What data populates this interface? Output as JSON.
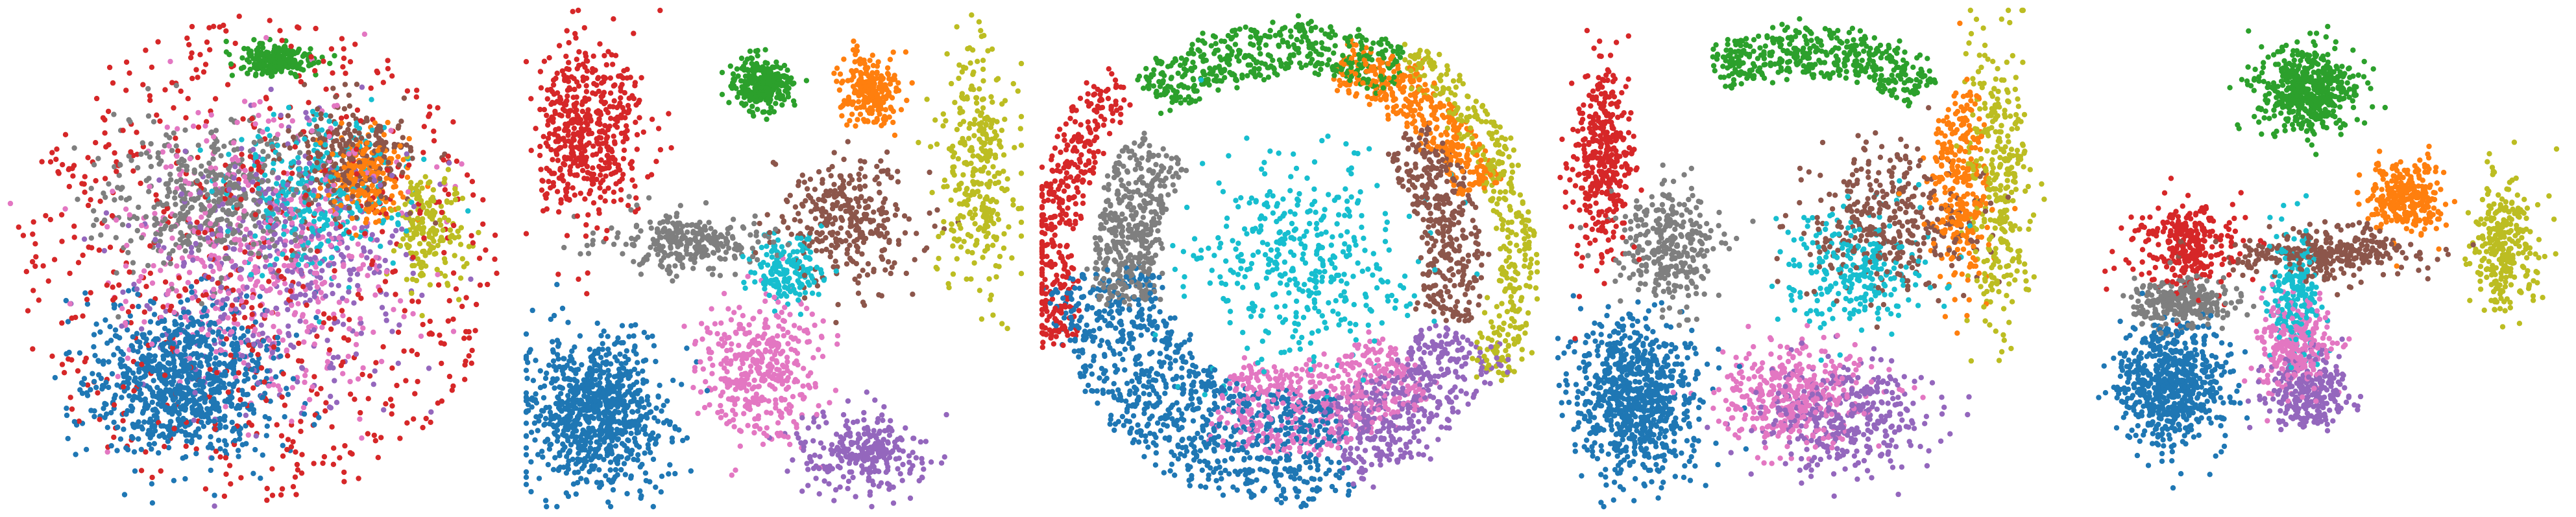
{
  "chart_data": [
    {
      "type": "scatter",
      "clusters": [
        {
          "color": "#1f77b4",
          "count": 900,
          "center": [
            -0.3,
            -0.5
          ],
          "spread": [
            0.4,
            0.3
          ],
          "shape": "blob"
        },
        {
          "color": "#ff7f0e",
          "count": 220,
          "center": [
            0.45,
            0.32
          ],
          "spread": [
            0.15,
            0.16
          ],
          "shape": "blob"
        },
        {
          "color": "#2ca02c",
          "count": 220,
          "center": [
            0.08,
            0.8
          ],
          "spread": [
            0.15,
            0.06
          ],
          "shape": "blob"
        },
        {
          "color": "#d62728",
          "count": 650,
          "center": [
            0.0,
            0.0
          ],
          "spread": [
            0.98,
            0.98
          ],
          "shape": "scatter"
        },
        {
          "color": "#9467bd",
          "count": 420,
          "center": [
            0.1,
            -0.05
          ],
          "spread": [
            0.55,
            0.55
          ],
          "shape": "blob"
        },
        {
          "color": "#8c564b",
          "count": 260,
          "center": [
            0.38,
            0.42
          ],
          "spread": [
            0.25,
            0.2
          ],
          "shape": "blob"
        },
        {
          "color": "#e377c2",
          "count": 500,
          "center": [
            0.0,
            0.0
          ],
          "spread": [
            0.6,
            0.6
          ],
          "shape": "blob"
        },
        {
          "color": "#7f7f7f",
          "count": 450,
          "center": [
            -0.2,
            0.25
          ],
          "spread": [
            0.45,
            0.3
          ],
          "shape": "blob"
        },
        {
          "color": "#bcbd22",
          "count": 180,
          "center": [
            0.7,
            0.1
          ],
          "spread": [
            0.15,
            0.22
          ],
          "shape": "blob"
        },
        {
          "color": "#17becf",
          "count": 300,
          "center": [
            0.25,
            0.25
          ],
          "spread": [
            0.35,
            0.3
          ],
          "shape": "blob"
        }
      ]
    },
    {
      "type": "scatter",
      "clusters": [
        {
          "color": "#1f77b4",
          "count": 850,
          "center": [
            -0.72,
            -0.62
          ],
          "spread": [
            0.28,
            0.3
          ],
          "shape": "blob"
        },
        {
          "color": "#ff7f0e",
          "count": 220,
          "center": [
            0.4,
            0.68
          ],
          "spread": [
            0.12,
            0.15
          ],
          "shape": "blob"
        },
        {
          "color": "#2ca02c",
          "count": 300,
          "center": [
            -0.05,
            0.7
          ],
          "spread": [
            0.12,
            0.1
          ],
          "shape": "blob"
        },
        {
          "color": "#d62728",
          "count": 520,
          "center": [
            -0.75,
            0.5
          ],
          "spread": [
            0.22,
            0.35
          ],
          "shape": "blob"
        },
        {
          "color": "#9467bd",
          "count": 280,
          "center": [
            0.35,
            -0.78
          ],
          "spread": [
            0.25,
            0.15
          ],
          "shape": "blob"
        },
        {
          "color": "#8c564b",
          "count": 320,
          "center": [
            0.3,
            0.15
          ],
          "spread": [
            0.28,
            0.25
          ],
          "shape": "blob"
        },
        {
          "color": "#e377c2",
          "count": 400,
          "center": [
            -0.05,
            -0.45
          ],
          "spread": [
            0.25,
            0.28
          ],
          "shape": "blob"
        },
        {
          "color": "#7f7f7f",
          "count": 280,
          "center": [
            -0.35,
            0.06
          ],
          "spread": [
            0.3,
            0.12
          ],
          "shape": "blob"
        },
        {
          "color": "#bcbd22",
          "count": 320,
          "center": [
            0.82,
            0.35
          ],
          "spread": [
            0.15,
            0.5
          ],
          "shape": "blob"
        },
        {
          "color": "#17becf",
          "count": 160,
          "center": [
            0.05,
            -0.05
          ],
          "spread": [
            0.15,
            0.15
          ],
          "shape": "blob"
        }
      ]
    },
    {
      "type": "scatter",
      "clusters": [
        {
          "color": "#1f77b4",
          "count": 900,
          "angle": [
            185,
            285
          ],
          "radius": [
            0.55,
            0.98
          ],
          "shape": "arc"
        },
        {
          "color": "#ff7f0e",
          "count": 380,
          "angle": [
            20,
            75
          ],
          "radius": [
            0.72,
            0.9
          ],
          "shape": "arc"
        },
        {
          "color": "#2ca02c",
          "count": 450,
          "angle": [
            60,
            130
          ],
          "radius": [
            0.75,
            0.95
          ],
          "shape": "arc"
        },
        {
          "color": "#d62728",
          "count": 380,
          "angle": [
            135,
            200
          ],
          "radius": [
            0.88,
            1.05
          ],
          "shape": "arc"
        },
        {
          "color": "#9467bd",
          "count": 420,
          "angle": [
            285,
            335
          ],
          "radius": [
            0.6,
            0.95
          ],
          "shape": "arc"
        },
        {
          "color": "#8c564b",
          "count": 360,
          "angle": [
            -20,
            45
          ],
          "radius": [
            0.55,
            0.78
          ],
          "shape": "arc"
        },
        {
          "color": "#e377c2",
          "count": 500,
          "angle": [
            245,
            320
          ],
          "radius": [
            0.45,
            0.78
          ],
          "shape": "arc"
        },
        {
          "color": "#7f7f7f",
          "count": 420,
          "angle": [
            140,
            195
          ],
          "radius": [
            0.55,
            0.8
          ],
          "shape": "arc"
        },
        {
          "color": "#bcbd22",
          "count": 380,
          "angle": [
            -30,
            60
          ],
          "radius": [
            0.85,
            1.0
          ],
          "shape": "arc"
        },
        {
          "color": "#17becf",
          "count": 400,
          "center": [
            0.05,
            0.0
          ],
          "spread": [
            0.45,
            0.45
          ],
          "shape": "blob"
        }
      ]
    },
    {
      "type": "scatter",
      "clusters": [
        {
          "color": "#1f77b4",
          "count": 800,
          "center": [
            -0.68,
            -0.55
          ],
          "spread": [
            0.25,
            0.32
          ],
          "shape": "blob"
        },
        {
          "color": "#ff7f0e",
          "count": 300,
          "center": [
            0.62,
            0.3
          ],
          "spread": [
            0.12,
            0.4
          ],
          "shape": "blob"
        },
        {
          "color": "#2ca02c",
          "count": 420,
          "angle": [
            55,
            115
          ],
          "radius": [
            0.75,
            0.92
          ],
          "shape": "arc"
        },
        {
          "color": "#d62728",
          "count": 380,
          "center": [
            -0.82,
            0.4
          ],
          "spread": [
            0.12,
            0.4
          ],
          "shape": "blob"
        },
        {
          "color": "#9467bd",
          "count": 350,
          "center": [
            0.15,
            -0.65
          ],
          "spread": [
            0.35,
            0.22
          ],
          "shape": "blob"
        },
        {
          "color": "#8c564b",
          "count": 360,
          "center": [
            0.35,
            0.15
          ],
          "spread": [
            0.35,
            0.3
          ],
          "shape": "blob"
        },
        {
          "color": "#e377c2",
          "count": 400,
          "center": [
            -0.05,
            -0.55
          ],
          "spread": [
            0.3,
            0.2
          ],
          "shape": "blob"
        },
        {
          "color": "#7f7f7f",
          "count": 300,
          "center": [
            -0.55,
            0.05
          ],
          "spread": [
            0.2,
            0.25
          ],
          "shape": "blob"
        },
        {
          "color": "#bcbd22",
          "count": 330,
          "center": [
            0.78,
            0.3
          ],
          "spread": [
            0.12,
            0.55
          ],
          "shape": "blob"
        },
        {
          "color": "#17becf",
          "count": 260,
          "center": [
            0.2,
            -0.05
          ],
          "spread": [
            0.3,
            0.25
          ],
          "shape": "blob"
        }
      ]
    },
    {
      "type": "scatter",
      "clusters": [
        {
          "color": "#1f77b4",
          "count": 650,
          "center": [
            -0.6,
            -0.5
          ],
          "spread": [
            0.22,
            0.25
          ],
          "shape": "blob"
        },
        {
          "color": "#ff7f0e",
          "count": 300,
          "center": [
            0.35,
            0.25
          ],
          "spread": [
            0.15,
            0.15
          ],
          "shape": "blob"
        },
        {
          "color": "#2ca02c",
          "count": 500,
          "center": [
            -0.05,
            0.68
          ],
          "spread": [
            0.2,
            0.18
          ],
          "shape": "blob"
        },
        {
          "color": "#d62728",
          "count": 280,
          "center": [
            -0.55,
            0.05
          ],
          "spread": [
            0.2,
            0.18
          ],
          "shape": "blob"
        },
        {
          "color": "#9467bd",
          "count": 250,
          "center": [
            -0.05,
            -0.55
          ],
          "spread": [
            0.18,
            0.15
          ],
          "shape": "blob"
        },
        {
          "color": "#8c564b",
          "count": 320,
          "center": [
            0.02,
            0.02
          ],
          "spread": [
            0.35,
            0.1
          ],
          "shape": "blob"
        },
        {
          "color": "#e377c2",
          "count": 280,
          "center": [
            -0.1,
            -0.35
          ],
          "spread": [
            0.15,
            0.2
          ],
          "shape": "blob"
        },
        {
          "color": "#7f7f7f",
          "count": 280,
          "center": [
            -0.55,
            -0.18
          ],
          "spread": [
            0.2,
            0.1
          ],
          "shape": "blob"
        },
        {
          "color": "#bcbd22",
          "count": 280,
          "center": [
            0.75,
            0.05
          ],
          "spread": [
            0.14,
            0.25
          ],
          "shape": "blob"
        },
        {
          "color": "#17becf",
          "count": 200,
          "center": [
            -0.1,
            -0.15
          ],
          "spread": [
            0.1,
            0.25
          ],
          "shape": "blob"
        }
      ]
    }
  ]
}
